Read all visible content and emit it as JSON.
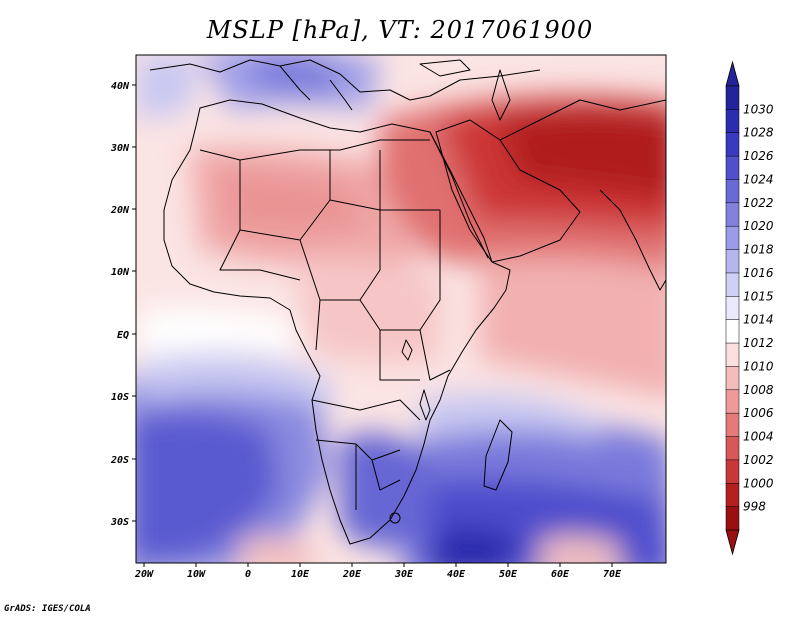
{
  "title": "MSLP [hPa], VT: 2017061900",
  "footer": "GrADS: IGES/COLA",
  "axes": {
    "lon_ticks": [
      "20W",
      "10W",
      "0",
      "10E",
      "20E",
      "30E",
      "40E",
      "50E",
      "60E",
      "70E"
    ],
    "lat_ticks": [
      "40N",
      "30N",
      "20N",
      "10N",
      "EQ",
      "10S",
      "20S",
      "30S"
    ]
  },
  "colorbar": {
    "labels": [
      "1030",
      "1028",
      "1026",
      "1024",
      "1022",
      "1020",
      "1018",
      "1016",
      "1015",
      "1014",
      "1012",
      "1010",
      "1008",
      "1006",
      "1004",
      "1002",
      "1000",
      "998"
    ],
    "colors": [
      "#24249a",
      "#2c2cae",
      "#3a3ac0",
      "#5050cc",
      "#6a6ad6",
      "#8282de",
      "#9c9ce6",
      "#b6b6ee",
      "#d0d0f6",
      "#eaeafc",
      "#ffffff",
      "#fbdede",
      "#f5bcbc",
      "#ee9a9a",
      "#e47a7a",
      "#d85858",
      "#c83838",
      "#b42020",
      "#9a1010"
    ]
  },
  "palette": {
    "high_dark": "#3c3cc8",
    "high": "#7c7cdc",
    "high_light": "#c8c8f2",
    "neutral": "#fdf0f0",
    "low_light": "#f6c6c6",
    "low": "#e88a8a",
    "low_dark": "#cc3434",
    "low_darkest": "#b01c1c",
    "coast": "#000000"
  }
}
